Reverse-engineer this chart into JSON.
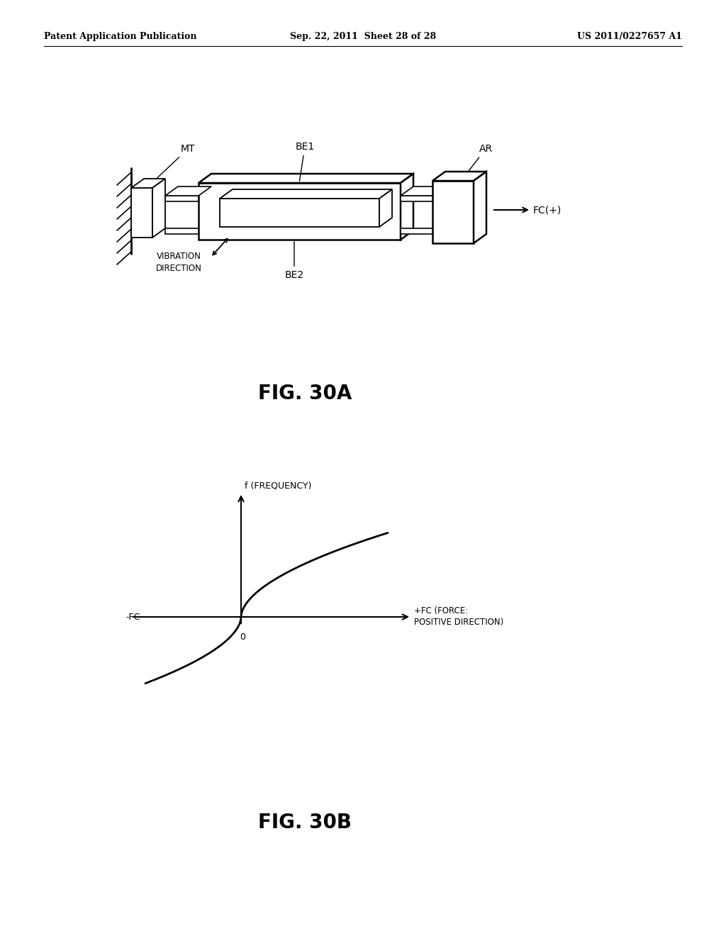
{
  "background_color": "#ffffff",
  "header_left": "Patent Application Publication",
  "header_center": "Sep. 22, 2011  Sheet 28 of 28",
  "header_right": "US 2011/0227657 A1",
  "header_fontsize": 9,
  "fig30a_label": "FIG. 30A",
  "fig30b_label": "FIG. 30B",
  "label_fontsize": 20,
  "text_color": "#000000",
  "line_color": "#000000"
}
